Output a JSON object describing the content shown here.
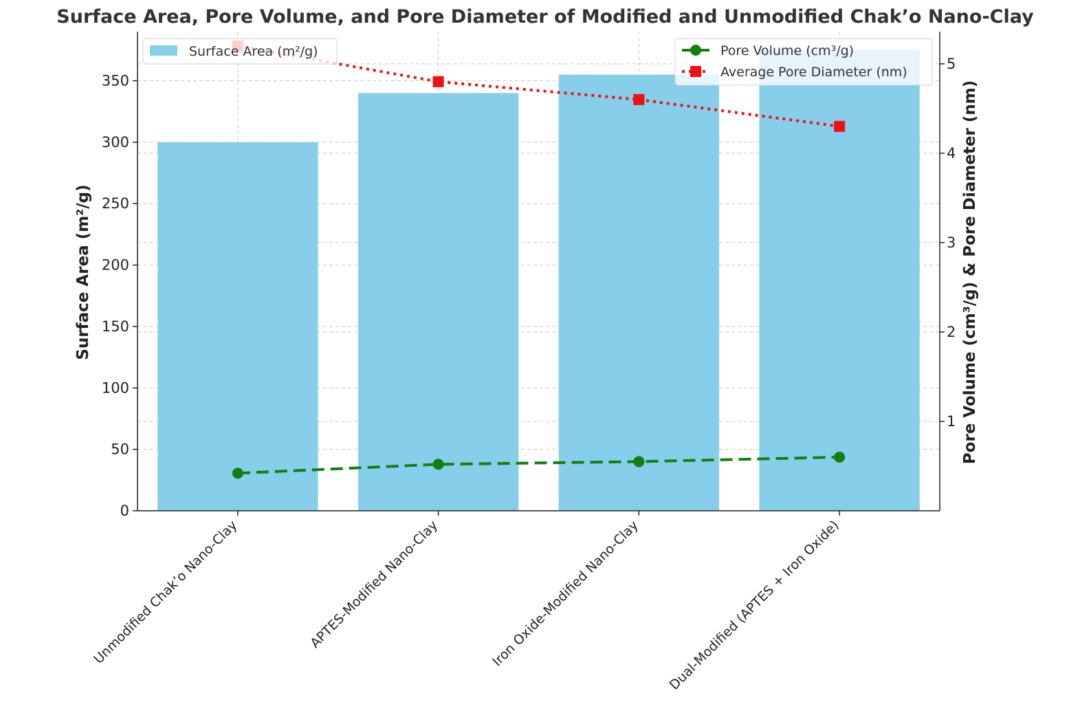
{
  "chart_data": {
    "type": "bar+line",
    "title": "Surface Area, Pore Volume, and Pore Diameter of Modified and Unmodified Chak’o Nano-Clay",
    "categories": [
      "Unmodified Chak’o Nano-Clay",
      "APTES-Modified Nano-Clay",
      "Iron Oxide-Modified Nano-Clay",
      "Dual-Modified (APTES + Iron Oxide)"
    ],
    "ylabel_left": "Surface Area (m²/g)",
    "ylabel_right": "Pore Volume (cm³/g) & Pore Diameter (nm)",
    "ylim_left": [
      0,
      390
    ],
    "ylim_right": [
      0.0,
      5.36
    ],
    "yticks_left": [
      0,
      50,
      100,
      150,
      200,
      250,
      300,
      350
    ],
    "yticks_right": [
      1,
      2,
      3,
      4,
      5
    ],
    "grid": true,
    "bar_series": {
      "name": "Surface Area (m²/g)",
      "values": [
        300,
        340,
        355,
        375
      ],
      "color": "#87ceeb"
    },
    "line_series": [
      {
        "name": "Pore Volume (cm³/g)",
        "values": [
          0.42,
          0.52,
          0.55,
          0.6
        ],
        "color": "#118011",
        "style": "dashed",
        "marker": "circle"
      },
      {
        "name": "Average Pore Diameter (nm)",
        "values": [
          5.2,
          4.8,
          4.6,
          4.3
        ],
        "color": "#ee1111",
        "style": "dotted",
        "marker": "square"
      }
    ],
    "legend_left": "top-left",
    "legend_right": "top-right"
  }
}
